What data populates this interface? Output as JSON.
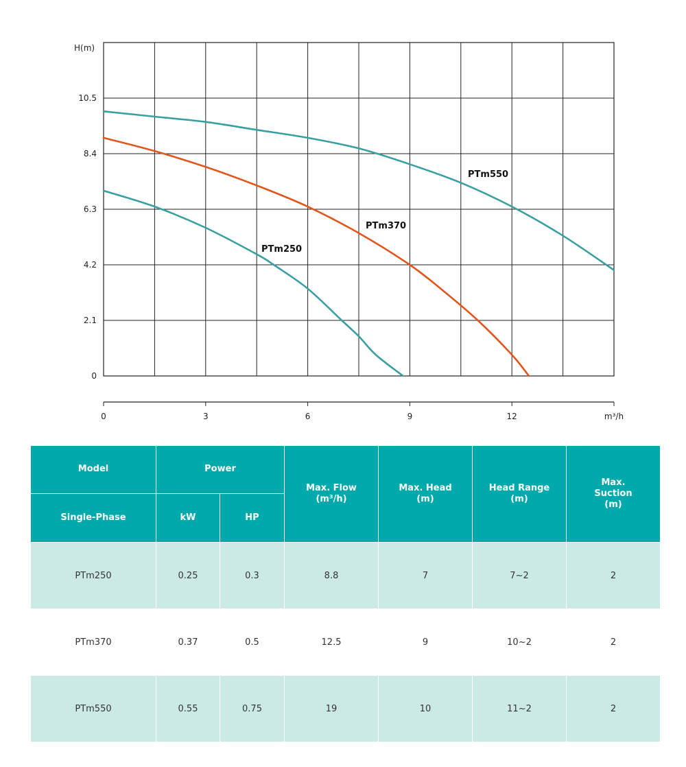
{
  "chart_data": {
    "type": "line",
    "ylabel": "H(m)",
    "xlabel": "m³/h",
    "x_ticks": [
      0,
      3,
      6,
      9,
      12
    ],
    "y_ticks": [
      0,
      2.1,
      4.2,
      6.3,
      8.4,
      10.5
    ],
    "xlim": [
      0,
      15
    ],
    "ylim": [
      0,
      12.6
    ],
    "grid": true,
    "series": [
      {
        "name": "PTm250",
        "color": "#3a9fa0",
        "x": [
          0,
          1.5,
          3,
          4.5,
          5,
          6,
          7,
          7.5,
          8,
          8.8
        ],
        "y": [
          7.0,
          6.4,
          5.6,
          4.6,
          4.2,
          3.3,
          2.1,
          1.5,
          0.8,
          0
        ]
      },
      {
        "name": "PTm370",
        "color": "#e1561d",
        "x": [
          0,
          1.5,
          3,
          4.5,
          6,
          7.5,
          9,
          10,
          11,
          12,
          12.5
        ],
        "y": [
          9.0,
          8.5,
          7.9,
          7.2,
          6.4,
          5.4,
          4.2,
          3.2,
          2.1,
          0.8,
          0
        ]
      },
      {
        "name": "PTm550",
        "color": "#3a9fa0",
        "x": [
          0,
          1.5,
          3,
          4.5,
          6,
          7.5,
          9,
          10.5,
          12,
          13.5,
          15
        ],
        "y": [
          10.0,
          9.8,
          9.6,
          9.3,
          9.0,
          8.6,
          8.0,
          7.3,
          6.4,
          5.3,
          4.0
        ]
      }
    ]
  },
  "table": {
    "headers": {
      "model": "Model",
      "power": "Power",
      "single_phase": "Single-Phase",
      "kw": "kW",
      "hp": "HP",
      "max_flow_line1": "Max. Flow",
      "max_flow_line2": "(m³/h)",
      "max_head_line1": "Max. Head",
      "max_head_line2": "(m)",
      "head_range_line1": "Head Range",
      "head_range_line2": "(m)",
      "max_suction_line1": "Max.",
      "max_suction_line2": "Suction",
      "max_suction_line3": "(m)"
    },
    "rows": [
      {
        "model": "PTm250",
        "kw": "0.25",
        "hp": "0.3",
        "max_flow": "8.8",
        "max_head": "7",
        "head_range": "7~2",
        "max_suction": "2"
      },
      {
        "model": "PTm370",
        "kw": "0.37",
        "hp": "0.5",
        "max_flow": "12.5",
        "max_head": "9",
        "head_range": "10~2",
        "max_suction": "2"
      },
      {
        "model": "PTm550",
        "kw": "0.55",
        "hp": "0.75",
        "max_flow": "19",
        "max_head": "10",
        "head_range": "11~2",
        "max_suction": "2"
      }
    ]
  },
  "colors": {
    "header_bg": "#00a9ab",
    "row_alt_bg": "#cbeae6",
    "teal_curve": "#3a9fa0",
    "orange_curve": "#e1561d"
  }
}
